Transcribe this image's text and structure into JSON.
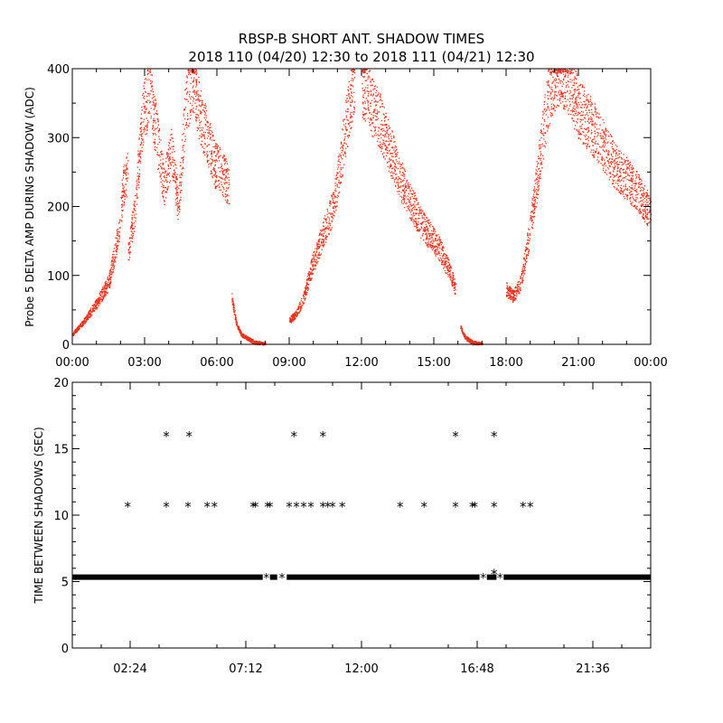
{
  "title_line1": "RBSP-B SHORT ANT. SHADOW TIMES",
  "title_line2": "2018 110 (04/20) 12:30 to 2018 111 (04/21) 12:30",
  "colors": {
    "series_top": "#e8321e",
    "series_bottom": "#000000",
    "axes": "#000000"
  },
  "chart_data": [
    {
      "type": "scatter",
      "ylabel": "Probe 5 DELTA AMP DURING SHADOW (ADC)",
      "xlim": [
        0,
        24
      ],
      "ylim": [
        0,
        400
      ],
      "x_tick_labels": [
        "00:00",
        "03:00",
        "06:00",
        "09:00",
        "12:00",
        "15:00",
        "18:00",
        "21:00",
        "00:00"
      ],
      "x_tick_values": [
        0,
        3,
        6,
        9,
        12,
        15,
        18,
        21,
        24
      ],
      "y_tick_labels": [
        "0",
        "100",
        "200",
        "300",
        "400"
      ],
      "y_tick_values": [
        0,
        100,
        200,
        300,
        400
      ],
      "segments": [
        {
          "x": [
            0.0,
            0.5,
            1.0,
            1.5,
            1.9,
            2.1,
            2.3
          ],
          "y": [
            15,
            35,
            60,
            90,
            160,
            230,
            250
          ]
        },
        {
          "x": [
            2.3,
            2.6,
            2.9,
            3.2,
            3.5,
            3.8,
            4.1,
            4.4,
            4.7,
            5.0,
            5.3,
            5.6,
            5.9,
            6.2,
            6.5
          ],
          "y": [
            130,
            200,
            330,
            370,
            300,
            230,
            280,
            200,
            350,
            390,
            330,
            300,
            260,
            250,
            230
          ]
        },
        {
          "x": [
            6.6,
            6.8,
            7.0,
            7.3,
            7.6,
            8.0
          ],
          "y": [
            70,
            30,
            15,
            8,
            3,
            0
          ]
        },
        {
          "x": [
            9.0,
            9.3,
            9.6,
            9.9,
            10.2,
            10.5,
            10.8,
            11.1,
            11.4,
            11.7
          ],
          "y": [
            35,
            45,
            70,
            110,
            140,
            170,
            200,
            260,
            330,
            390
          ]
        },
        {
          "x": [
            12.0,
            12.4,
            12.8,
            13.2,
            13.6,
            14.0,
            14.4,
            14.8,
            15.2,
            15.6,
            15.9
          ],
          "y": [
            380,
            350,
            320,
            280,
            240,
            210,
            180,
            160,
            140,
            110,
            80
          ]
        },
        {
          "x": [
            16.1,
            16.3,
            16.6,
            17.0
          ],
          "y": [
            25,
            10,
            3,
            0
          ]
        },
        {
          "x": [
            18.0,
            18.3,
            18.6,
            18.9,
            19.2,
            19.5,
            19.8,
            20.1,
            20.5,
            21.0,
            21.5,
            22.0,
            22.5,
            23.0,
            23.5,
            24.0
          ],
          "y": [
            80,
            70,
            90,
            150,
            220,
            300,
            370,
            400,
            390,
            340,
            320,
            290,
            260,
            240,
            220,
            190
          ]
        }
      ]
    },
    {
      "type": "scatter",
      "ylabel": "TIME BETWEEN SHADOWS (SEC)",
      "xlim": [
        0,
        24
      ],
      "ylim": [
        0,
        20
      ],
      "x_tick_labels": [
        "02:24",
        "07:12",
        "12:00",
        "16:48",
        "21:36"
      ],
      "x_tick_values": [
        2.4,
        7.2,
        12.0,
        16.8,
        21.6
      ],
      "y_tick_labels": [
        "0",
        "5",
        "10",
        "15",
        "20"
      ],
      "y_tick_values": [
        0,
        5,
        10,
        15,
        20
      ],
      "baseline_value": 5.33,
      "baseline_gaps": [
        [
          7.9,
          8.2
        ],
        [
          8.5,
          8.9
        ],
        [
          16.9,
          17.2
        ],
        [
          17.6,
          17.9
        ]
      ],
      "points": [
        {
          "x": 2.3,
          "y": 10.67
        },
        {
          "x": 3.9,
          "y": 10.67
        },
        {
          "x": 3.9,
          "y": 16.0
        },
        {
          "x": 4.8,
          "y": 10.67
        },
        {
          "x": 4.85,
          "y": 16.0
        },
        {
          "x": 5.6,
          "y": 10.67
        },
        {
          "x": 5.9,
          "y": 10.67
        },
        {
          "x": 7.5,
          "y": 10.67
        },
        {
          "x": 7.6,
          "y": 10.67
        },
        {
          "x": 8.1,
          "y": 10.67
        },
        {
          "x": 8.2,
          "y": 10.67
        },
        {
          "x": 9.0,
          "y": 10.67
        },
        {
          "x": 9.2,
          "y": 16.0
        },
        {
          "x": 9.3,
          "y": 10.67
        },
        {
          "x": 9.6,
          "y": 10.67
        },
        {
          "x": 9.9,
          "y": 10.67
        },
        {
          "x": 10.4,
          "y": 16.0
        },
        {
          "x": 10.4,
          "y": 10.67
        },
        {
          "x": 10.6,
          "y": 10.67
        },
        {
          "x": 10.8,
          "y": 10.67
        },
        {
          "x": 11.2,
          "y": 10.67
        },
        {
          "x": 13.6,
          "y": 10.67
        },
        {
          "x": 14.6,
          "y": 10.67
        },
        {
          "x": 15.9,
          "y": 16.0
        },
        {
          "x": 15.9,
          "y": 10.67
        },
        {
          "x": 16.6,
          "y": 10.67
        },
        {
          "x": 16.7,
          "y": 10.67
        },
        {
          "x": 17.5,
          "y": 16.0
        },
        {
          "x": 17.5,
          "y": 10.67
        },
        {
          "x": 17.5,
          "y": 5.6
        },
        {
          "x": 18.7,
          "y": 10.67
        },
        {
          "x": 19.0,
          "y": 10.67
        }
      ]
    }
  ]
}
